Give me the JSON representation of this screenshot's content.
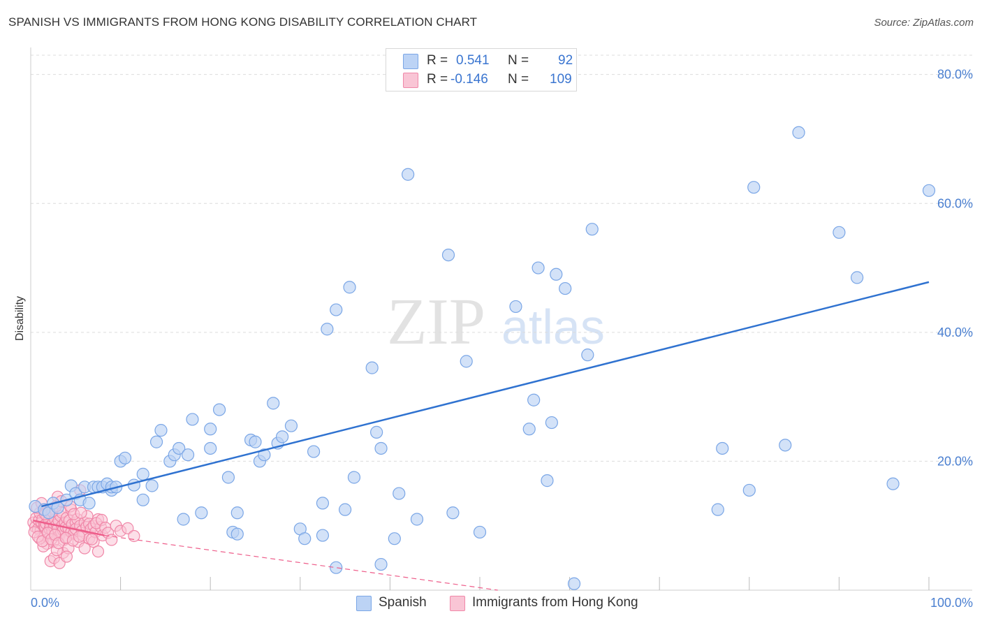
{
  "title": "SPANISH VS IMMIGRANTS FROM HONG KONG DISABILITY CORRELATION CHART",
  "source": "Source: ZipAtlas.com",
  "watermark": {
    "zip": "ZIP",
    "atlas": "atlas"
  },
  "legend": {
    "r_label": "R =",
    "n_label": "N =",
    "series": [
      {
        "name": "Spanish",
        "r": "0.541",
        "n": "92",
        "fill": "#bcd3f5",
        "stroke": "#7aa6e6"
      },
      {
        "name": "Immigrants from Hong Kong",
        "r": "-0.146",
        "n": "109",
        "fill": "#f9c5d5",
        "stroke": "#f087a8"
      }
    ]
  },
  "chart_data": {
    "type": "scatter",
    "title": "SPANISH VS IMMIGRANTS FROM HONG KONG DISABILITY CORRELATION CHART",
    "xlabel": "",
    "ylabel": "Disability",
    "xlim": [
      0,
      100
    ],
    "ylim": [
      0,
      83
    ],
    "x_tick_labels": [
      "0.0%",
      "100.0%"
    ],
    "y_ticks": [
      20,
      40,
      60,
      80
    ],
    "y_tick_labels": [
      "20.0%",
      "40.0%",
      "60.0%",
      "80.0%"
    ],
    "grid": true,
    "colors": {
      "blue": "#2f72d0",
      "pink": "#ee5d8a"
    },
    "series": [
      {
        "name": "Spanish",
        "trend": {
          "x0": 1.2,
          "y0": 13.0,
          "x1": 100.0,
          "y1": 47.8
        },
        "points": [
          [
            0.5,
            13.0
          ],
          [
            1.5,
            12.5
          ],
          [
            2.0,
            12.0
          ],
          [
            2.5,
            13.5
          ],
          [
            4.0,
            14.0
          ],
          [
            4.5,
            16.2
          ],
          [
            5.0,
            15.0
          ],
          [
            5.5,
            14.0
          ],
          [
            6.0,
            16.0
          ],
          [
            6.5,
            13.5
          ],
          [
            7.0,
            16.0
          ],
          [
            7.5,
            16.0
          ],
          [
            8.0,
            16.0
          ],
          [
            8.5,
            16.5
          ],
          [
            9.0,
            15.5
          ],
          [
            9.0,
            16.0
          ],
          [
            9.5,
            16.0
          ],
          [
            10.0,
            20.0
          ],
          [
            10.5,
            20.5
          ],
          [
            11.5,
            16.3
          ],
          [
            12.5,
            18.0
          ],
          [
            12.5,
            14.0
          ],
          [
            13.5,
            16.2
          ],
          [
            14.0,
            23.0
          ],
          [
            14.5,
            24.8
          ],
          [
            15.5,
            20.0
          ],
          [
            16.0,
            21.0
          ],
          [
            16.5,
            22.0
          ],
          [
            17.0,
            11.0
          ],
          [
            17.5,
            21.0
          ],
          [
            18.0,
            26.5
          ],
          [
            19.0,
            12.0
          ],
          [
            20.0,
            25.0
          ],
          [
            20.0,
            22.0
          ],
          [
            21.0,
            28.0
          ],
          [
            22.0,
            17.5
          ],
          [
            23.0,
            12.0
          ],
          [
            22.5,
            9.0
          ],
          [
            23.0,
            8.7
          ],
          [
            24.5,
            23.3
          ],
          [
            25.0,
            23.0
          ],
          [
            25.5,
            20.0
          ],
          [
            26.0,
            21.0
          ],
          [
            27.0,
            29.0
          ],
          [
            27.5,
            22.8
          ],
          [
            28.0,
            23.8
          ],
          [
            29.0,
            25.5
          ],
          [
            30.0,
            9.5
          ],
          [
            30.5,
            8.0
          ],
          [
            31.5,
            21.5
          ],
          [
            32.5,
            13.5
          ],
          [
            32.5,
            8.5
          ],
          [
            33.0,
            40.5
          ],
          [
            34.0,
            3.5
          ],
          [
            34.0,
            43.5
          ],
          [
            35.0,
            12.5
          ],
          [
            35.5,
            47.0
          ],
          [
            36.0,
            17.5
          ],
          [
            38.0,
            34.5
          ],
          [
            38.5,
            24.5
          ],
          [
            39.0,
            22.0
          ],
          [
            39.0,
            4.0
          ],
          [
            40.5,
            8.0
          ],
          [
            41.0,
            15.0
          ],
          [
            42.0,
            64.5
          ],
          [
            43.0,
            11.0
          ],
          [
            46.5,
            52.0
          ],
          [
            47.0,
            12.0
          ],
          [
            48.5,
            35.5
          ],
          [
            50.0,
            9.0
          ],
          [
            54.0,
            44.0
          ],
          [
            55.5,
            25.0
          ],
          [
            56.0,
            29.5
          ],
          [
            56.5,
            50.0
          ],
          [
            57.5,
            17.0
          ],
          [
            58.0,
            26.0
          ],
          [
            58.5,
            49.0
          ],
          [
            59.5,
            46.8
          ],
          [
            60.5,
            1.0
          ],
          [
            62.0,
            36.5
          ],
          [
            62.5,
            56.0
          ],
          [
            76.5,
            12.5
          ],
          [
            77.0,
            22.0
          ],
          [
            80.0,
            15.5
          ],
          [
            80.5,
            62.5
          ],
          [
            84.0,
            22.5
          ],
          [
            85.5,
            71.0
          ],
          [
            90.0,
            55.5
          ],
          [
            92.0,
            48.5
          ],
          [
            96.0,
            16.5
          ],
          [
            100.0,
            62.0
          ],
          [
            3.0,
            12.8
          ]
        ]
      },
      {
        "name": "Immigrants from Hong Kong",
        "trend": {
          "x0": 0.3,
          "y0": 10.8,
          "x1": 8.2,
          "y1": 8.5
        },
        "trend_extension": {
          "x0": 8.2,
          "y0": 8.5,
          "x1": 52.0,
          "y1": 0.0
        },
        "points": [
          [
            0.3,
            10.5
          ],
          [
            0.5,
            9.8
          ],
          [
            0.6,
            11.2
          ],
          [
            0.8,
            9.5
          ],
          [
            0.9,
            10.8
          ],
          [
            1.0,
            12.0
          ],
          [
            1.1,
            9.2
          ],
          [
            1.2,
            10.5
          ],
          [
            1.3,
            11.0
          ],
          [
            1.4,
            8.5
          ],
          [
            1.5,
            10.0
          ],
          [
            1.5,
            12.5
          ],
          [
            1.6,
            9.8
          ],
          [
            1.7,
            10.3
          ],
          [
            1.8,
            11.5
          ],
          [
            1.9,
            9.0
          ],
          [
            2.0,
            10.8
          ],
          [
            2.0,
            8.0
          ],
          [
            2.1,
            9.5
          ],
          [
            2.2,
            10.0
          ],
          [
            2.3,
            11.8
          ],
          [
            2.4,
            9.2
          ],
          [
            2.5,
            10.5
          ],
          [
            2.5,
            7.5
          ],
          [
            2.6,
            9.8
          ],
          [
            2.7,
            11.0
          ],
          [
            2.8,
            8.8
          ],
          [
            2.9,
            10.2
          ],
          [
            3.0,
            9.5
          ],
          [
            3.0,
            14.5
          ],
          [
            3.1,
            10.8
          ],
          [
            3.2,
            8.5
          ],
          [
            3.3,
            11.5
          ],
          [
            3.4,
            9.0
          ],
          [
            3.5,
            10.0
          ],
          [
            3.5,
            12.0
          ],
          [
            3.6,
            9.3
          ],
          [
            3.7,
            7.8
          ],
          [
            3.8,
            10.5
          ],
          [
            3.9,
            9.8
          ],
          [
            4.0,
            11.2
          ],
          [
            4.0,
            8.2
          ],
          [
            4.2,
            9.6
          ],
          [
            4.3,
            10.8
          ],
          [
            4.5,
            9.0
          ],
          [
            4.5,
            12.5
          ],
          [
            4.6,
            10.2
          ],
          [
            4.8,
            8.8
          ],
          [
            5.0,
            10.5
          ],
          [
            5.0,
            9.5
          ],
          [
            5.2,
            11.0
          ],
          [
            5.3,
            7.5
          ],
          [
            5.5,
            10.0
          ],
          [
            5.5,
            15.5
          ],
          [
            5.7,
            9.2
          ],
          [
            5.8,
            8.5
          ],
          [
            6.0,
            10.5
          ],
          [
            6.0,
            6.5
          ],
          [
            6.2,
            9.8
          ],
          [
            6.3,
            11.5
          ],
          [
            6.5,
            8.0
          ],
          [
            6.5,
            10.3
          ],
          [
            6.7,
            9.5
          ],
          [
            7.0,
            10.0
          ],
          [
            7.0,
            7.5
          ],
          [
            7.2,
            9.0
          ],
          [
            7.5,
            11.0
          ],
          [
            7.5,
            6.0
          ],
          [
            7.8,
            9.8
          ],
          [
            8.0,
            8.5
          ],
          [
            2.2,
            4.5
          ],
          [
            2.6,
            5.0
          ],
          [
            3.2,
            4.2
          ],
          [
            3.6,
            5.8
          ],
          [
            4.2,
            6.5
          ],
          [
            4.0,
            5.2
          ],
          [
            1.8,
            7.2
          ],
          [
            1.4,
            6.8
          ],
          [
            2.9,
            6.2
          ],
          [
            1.0,
            8.0
          ],
          [
            0.4,
            9.0
          ],
          [
            0.7,
            12.8
          ],
          [
            1.2,
            13.5
          ],
          [
            1.6,
            11.8
          ],
          [
            2.4,
            12.2
          ],
          [
            2.8,
            13.0
          ],
          [
            3.4,
            13.8
          ],
          [
            4.4,
            13.0
          ],
          [
            4.8,
            11.8
          ],
          [
            5.6,
            12.0
          ],
          [
            0.8,
            8.3
          ],
          [
            1.3,
            7.6
          ],
          [
            1.9,
            8.9
          ],
          [
            2.3,
            7.9
          ],
          [
            2.7,
            8.6
          ],
          [
            3.1,
            7.3
          ],
          [
            3.9,
            8.1
          ],
          [
            4.7,
            7.7
          ],
          [
            5.4,
            8.3
          ],
          [
            6.8,
            7.9
          ],
          [
            7.3,
            10.4
          ],
          [
            7.9,
            10.9
          ],
          [
            8.3,
            9.7
          ],
          [
            8.6,
            8.9
          ],
          [
            9.0,
            7.8
          ],
          [
            9.5,
            10.0
          ],
          [
            10.0,
            9.2
          ],
          [
            10.8,
            9.6
          ],
          [
            11.5,
            8.4
          ]
        ]
      }
    ]
  }
}
